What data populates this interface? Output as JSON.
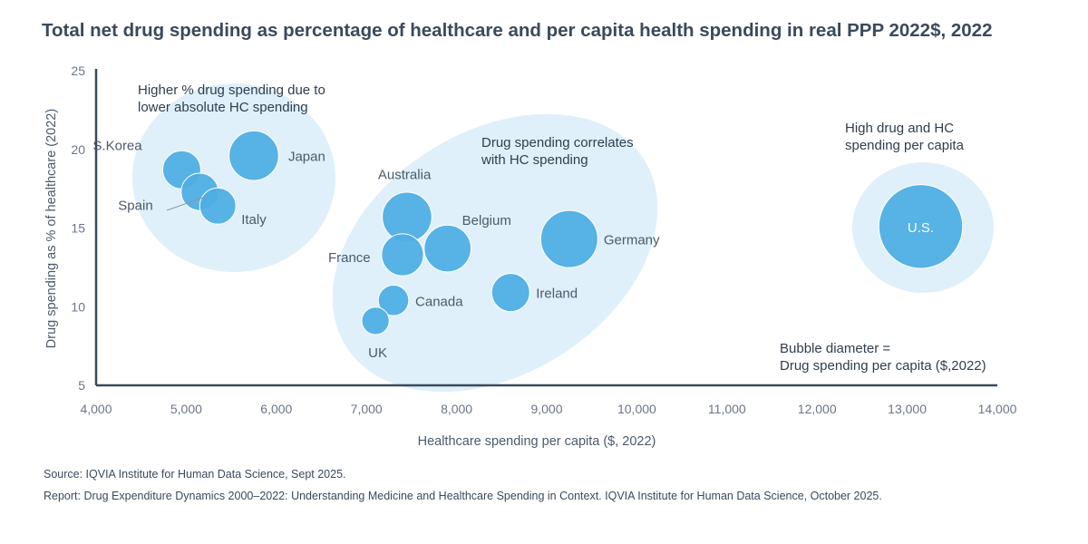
{
  "title": "Total net drug spending as percentage of healthcare and per capita health spending in real PPP 2022$, 2022",
  "footer": {
    "source": "Source: IQVIA Institute for Human Data Science, Sept 2025.",
    "report": "Report: Drug Expenditure Dynamics 2000–2022: Understanding Medicine and Healthcare Spending in Context. IQVIA Institute for Human Data Science, October 2025."
  },
  "colors": {
    "bubble": "#4faee4",
    "cluster": "#dff0fa",
    "axis": "#3a4a5c",
    "text": "#3a4a5c"
  },
  "chart_data": {
    "type": "bubble",
    "xlabel": "Healthcare spending per capita ($, 2022)",
    "ylabel": "Drug spending as % of healthcare (2022)",
    "xlim": [
      4000,
      14000
    ],
    "ylim": [
      5,
      25
    ],
    "xticks": [
      4000,
      5000,
      6000,
      7000,
      8000,
      9000,
      10000,
      11000,
      12000,
      13000,
      14000
    ],
    "xtick_labels": [
      "4,000",
      "5,000",
      "6,000",
      "7,000",
      "8,000",
      "9,000",
      "10,000",
      "11,000",
      "12,000",
      "13,000",
      "14,000"
    ],
    "yticks": [
      5,
      10,
      15,
      20,
      25
    ],
    "ytick_labels": [
      "5",
      "10",
      "15",
      "20",
      "25"
    ],
    "grid": false,
    "points": [
      {
        "name": "S.Korea",
        "x": 4950,
        "y": 18.7,
        "size": 1.0
      },
      {
        "name": "Spain",
        "x": 5150,
        "y": 17.3,
        "size": 0.98
      },
      {
        "name": "Italy",
        "x": 5350,
        "y": 16.4,
        "size": 0.95
      },
      {
        "name": "Japan",
        "x": 5750,
        "y": 19.6,
        "size": 1.3
      },
      {
        "name": "Australia",
        "x": 7450,
        "y": 15.7,
        "size": 1.3
      },
      {
        "name": "France",
        "x": 7400,
        "y": 13.3,
        "size": 1.1
      },
      {
        "name": "Belgium",
        "x": 7900,
        "y": 13.7,
        "size": 1.23
      },
      {
        "name": "Canada",
        "x": 7300,
        "y": 10.4,
        "size": 0.8
      },
      {
        "name": "UK",
        "x": 7100,
        "y": 9.1,
        "size": 0.72
      },
      {
        "name": "Ireland",
        "x": 8600,
        "y": 10.9,
        "size": 1.0
      },
      {
        "name": "Germany",
        "x": 9250,
        "y": 14.3,
        "size": 1.5
      },
      {
        "name": "U.S.",
        "x": 13150,
        "y": 15.1,
        "size": 2.2
      }
    ],
    "annotations": [
      {
        "lines": [
          "Higher % drug spending due to",
          "lower absolute HC spending"
        ]
      },
      {
        "lines": [
          "Drug spending correlates",
          "with HC spending"
        ]
      },
      {
        "lines": [
          "High drug and HC",
          "spending per capita"
        ]
      },
      {
        "lines": [
          "Bubble diameter =",
          "Drug spending per capita ($,2022)"
        ]
      }
    ]
  }
}
